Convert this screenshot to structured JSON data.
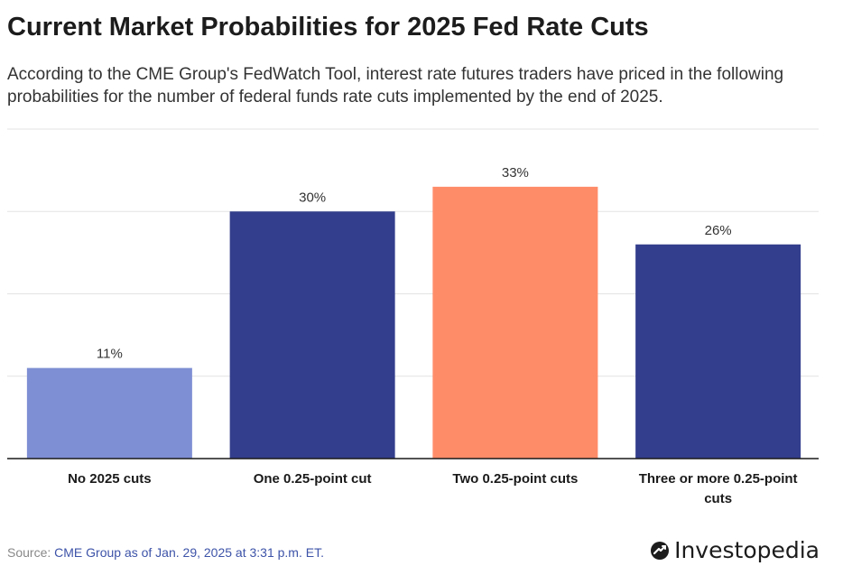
{
  "header": {
    "title": "Current Market Probabilities for 2025 Fed Rate Cuts",
    "subtitle": "According to the CME Group's FedWatch Tool, interest rate futures traders have priced in the following probabilities for the number of federal funds rate cuts implemented by the end of 2025."
  },
  "chart_data": {
    "type": "bar",
    "title": "Current Market Probabilities for 2025 Fed Rate Cuts",
    "xlabel": "",
    "ylabel": "",
    "ylim": [
      0,
      40
    ],
    "grid": true,
    "categories": [
      "No 2025 cuts",
      "One 0.25-point cut",
      "Two 0.25-point cuts",
      "Three or more 0.25-point cuts"
    ],
    "category_lines": [
      [
        "No 2025 cuts"
      ],
      [
        "One 0.25-point cut"
      ],
      [
        "Two 0.25-point cuts"
      ],
      [
        "Three or more 0.25-point",
        "cuts"
      ]
    ],
    "values": [
      11,
      30,
      33,
      26
    ],
    "data_labels": [
      "11%",
      "30%",
      "33%",
      "26%"
    ],
    "colors": [
      "#7f8fd4",
      "#333f8c",
      "#ff8c69",
      "#333f8c"
    ]
  },
  "footer": {
    "source_prefix": "Source: ",
    "source_text": "CME Group as of Jan. 29, 2025 at 3:31 p.m. ET.",
    "brand": "Investopedia",
    "brand_icon": "investopedia-logo-icon"
  }
}
